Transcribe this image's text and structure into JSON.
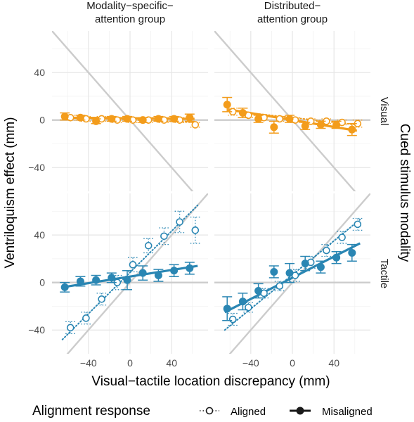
{
  "chart_data": {
    "type": "scatter",
    "facet_columns": [
      "Modality−specific−\nattention group",
      "Distributed−\nattention group"
    ],
    "facet_rows": [
      "Visual",
      "Tactile"
    ],
    "row_strip_title": "Cued stimulus modality",
    "xlabel": "Visual−tactile location discrepancy (mm)",
    "ylabel": "Ventriloquism effect (mm)",
    "xticks": [
      -40,
      0,
      40
    ],
    "yticks": [
      -40,
      0,
      40
    ],
    "xlim": [
      -75,
      75
    ],
    "ylim": [
      -60,
      75
    ],
    "identity_line_color": "#cccccc",
    "colors": {
      "Visual": "#f39c1b",
      "Tactile": "#2a86b3"
    },
    "legend": {
      "title": "Alignment response",
      "items": [
        {
          "label": "Aligned",
          "style": "open-dotted"
        },
        {
          "label": "Misaligned",
          "style": "filled-solid"
        }
      ]
    },
    "panels": [
      {
        "column": "Modality−specific−\nattention group",
        "row": "Visual",
        "series": [
          {
            "name": "Aligned",
            "x": [
              -60,
              -45,
              -30,
              -15,
              0,
              15,
              30,
              45,
              60
            ],
            "y": [
              2,
              1,
              1,
              0,
              0,
              0,
              0,
              0,
              -4
            ],
            "err": [
              2,
              2,
              2,
              2,
              2,
              2,
              2,
              2,
              2
            ]
          },
          {
            "name": "Misaligned",
            "x": [
              -60,
              -45,
              -30,
              -15,
              0,
              15,
              30,
              45,
              60
            ],
            "y": [
              3,
              2,
              -1,
              1,
              1,
              0,
              1,
              1,
              2
            ],
            "err": [
              3,
              2,
              2,
              2,
              2,
              2,
              2,
              2,
              3
            ]
          }
        ],
        "dotted_fit": [
          [
            -62,
            2.5
          ],
          [
            62,
            -2
          ]
        ],
        "solid_fit": [
          [
            -62,
            2
          ],
          [
            62,
            1
          ]
        ]
      },
      {
        "column": "Distributed−\nattention group",
        "row": "Visual",
        "series": [
          {
            "name": "Aligned",
            "x": [
              -60,
              -45,
              -30,
              -15,
              0,
              15,
              30,
              45,
              60
            ],
            "y": [
              7,
              4,
              2,
              1,
              0,
              -1,
              -1,
              -2,
              -3
            ],
            "err": [
              3,
              2,
              2,
              2,
              2,
              2,
              2,
              2,
              3
            ]
          },
          {
            "name": "Misaligned",
            "x": [
              -60,
              -45,
              -30,
              -15,
              0,
              15,
              30,
              45,
              60
            ],
            "y": [
              13,
              6,
              1,
              -6,
              1,
              -5,
              -4,
              -4,
              -8
            ],
            "err": [
              6,
              4,
              3,
              5,
              3,
              3,
              3,
              3,
              5
            ]
          }
        ],
        "dotted_fit": [
          [
            -62,
            8
          ],
          [
            62,
            -4
          ]
        ],
        "solid_fit": [
          [
            -62,
            9
          ],
          [
            62,
            -9
          ]
        ]
      },
      {
        "column": "Modality−specific−\nattention group",
        "row": "Tactile",
        "series": [
          {
            "name": "Aligned",
            "x": [
              -60,
              -45,
              -30,
              -15,
              0,
              15,
              30,
              45,
              60
            ],
            "y": [
              -38,
              -30,
              -14,
              0,
              15,
              31,
              39,
              51,
              44
            ],
            "err": [
              5,
              5,
              5,
              6,
              6,
              6,
              7,
              9,
              11
            ]
          },
          {
            "name": "Misaligned",
            "x": [
              -60,
              -45,
              -30,
              -15,
              0,
              15,
              30,
              45,
              60
            ],
            "y": [
              -4,
              1,
              2,
              4,
              2,
              8,
              6,
              10,
              12
            ],
            "err": [
              4,
              4,
              4,
              4,
              8,
              6,
              5,
              5,
              5
            ]
          }
        ],
        "dotted_fit": [
          [
            -65,
            -48
          ],
          [
            65,
            65
          ]
        ],
        "solid_fit": [
          [
            -65,
            -4
          ],
          [
            65,
            14
          ]
        ]
      },
      {
        "column": "Distributed−\nattention group",
        "row": "Tactile",
        "series": [
          {
            "name": "Aligned",
            "x": [
              -60,
              -45,
              -30,
              -15,
              0,
              15,
              30,
              45,
              60
            ],
            "y": [
              -31,
              -21,
              -9,
              -3,
              6,
              17,
              27,
              38,
              49
            ],
            "err": [
              5,
              4,
              4,
              4,
              5,
              5,
              5,
              5,
              5
            ]
          },
          {
            "name": "Misaligned",
            "x": [
              -60,
              -45,
              -30,
              -15,
              0,
              15,
              30,
              45,
              60
            ],
            "y": [
              -22,
              -16,
              -7,
              9,
              8,
              16,
              13,
              21,
              25
            ],
            "err": [
              10,
              7,
              6,
              5,
              8,
              6,
              5,
              5,
              7
            ]
          }
        ],
        "dotted_fit": [
          [
            -65,
            -40
          ],
          [
            65,
            53
          ]
        ],
        "solid_fit": [
          [
            -65,
            -25
          ],
          [
            65,
            33
          ]
        ]
      }
    ]
  }
}
